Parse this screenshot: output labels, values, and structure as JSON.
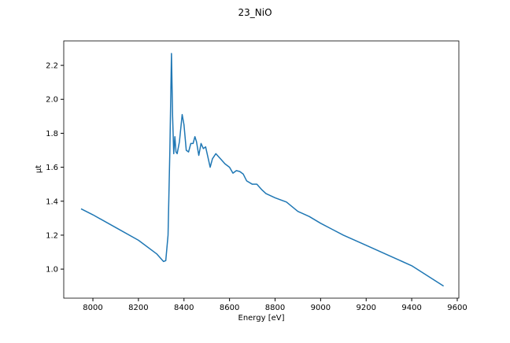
{
  "chart_data": {
    "type": "line",
    "title": "23_NiO",
    "x_label": "Energy [eV]",
    "y_label": "μt",
    "x": [
      7948,
      8000,
      8100,
      8200,
      8280,
      8310,
      8320,
      8330,
      8338,
      8345,
      8350,
      8355,
      8360,
      8365,
      8370,
      8380,
      8392,
      8400,
      8410,
      8420,
      8430,
      8440,
      8448,
      8455,
      8465,
      8475,
      8485,
      8495,
      8505,
      8515,
      8525,
      8540,
      8560,
      8580,
      8600,
      8615,
      8630,
      8645,
      8660,
      8675,
      8700,
      8720,
      8740,
      8760,
      8800,
      8850,
      8900,
      8950,
      9000,
      9050,
      9100,
      9200,
      9300,
      9400,
      9540
    ],
    "series": [
      {
        "color": "#1f77b4",
        "values": [
          1.355,
          1.32,
          1.245,
          1.17,
          1.09,
          1.045,
          1.05,
          1.2,
          1.7,
          2.27,
          1.9,
          1.68,
          1.78,
          1.69,
          1.68,
          1.75,
          1.91,
          1.85,
          1.7,
          1.69,
          1.74,
          1.74,
          1.78,
          1.75,
          1.67,
          1.74,
          1.71,
          1.72,
          1.66,
          1.6,
          1.65,
          1.68,
          1.65,
          1.62,
          1.6,
          1.565,
          1.58,
          1.575,
          1.56,
          1.52,
          1.5,
          1.5,
          1.47,
          1.445,
          1.42,
          1.395,
          1.34,
          1.31,
          1.27,
          1.235,
          1.2,
          1.14,
          1.08,
          1.02,
          0.9
        ]
      }
    ],
    "xlim": [
      7872,
      9607
    ],
    "ylim": [
      0.829,
      2.344
    ],
    "xticks": [
      8000,
      8200,
      8400,
      8600,
      8800,
      9000,
      9200,
      9400,
      9600
    ],
    "yticks": [
      {
        "value": 1.0,
        "label": "1.0"
      },
      1.2,
      1.4,
      1.6,
      1.8,
      {
        "value": 2.0,
        "label": "2.0"
      },
      2.2
    ]
  }
}
